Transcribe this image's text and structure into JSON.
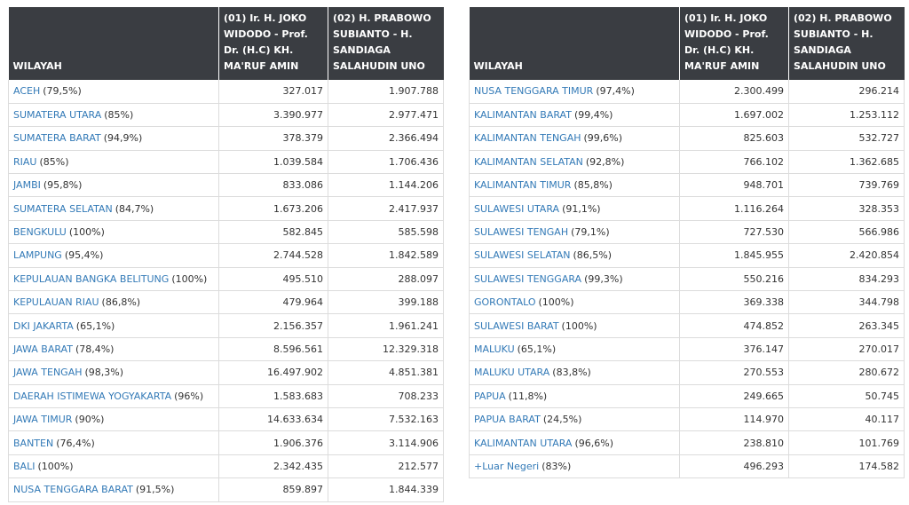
{
  "headers": {
    "region": "WILAYAH",
    "candidate1": "(01) Ir. H. JOKO WIDODO - Prof. Dr. (H.C) KH. MA'RUF AMIN",
    "candidate2": "(02) H. PRABOWO SUBIANTO - H. SANDIAGA SALAHUDIN UNO"
  },
  "left_rows": [
    {
      "region": "ACEH",
      "pct": "(79,5%)",
      "c1": "327.017",
      "c2": "1.907.788"
    },
    {
      "region": "SUMATERA UTARA",
      "pct": "(85%)",
      "c1": "3.390.977",
      "c2": "2.977.471"
    },
    {
      "region": "SUMATERA BARAT",
      "pct": "(94,9%)",
      "c1": "378.379",
      "c2": "2.366.494"
    },
    {
      "region": "RIAU",
      "pct": "(85%)",
      "c1": "1.039.584",
      "c2": "1.706.436"
    },
    {
      "region": "JAMBI",
      "pct": "(95,8%)",
      "c1": "833.086",
      "c2": "1.144.206"
    },
    {
      "region": "SUMATERA SELATAN",
      "pct": "(84,7%)",
      "c1": "1.673.206",
      "c2": "2.417.937"
    },
    {
      "region": "BENGKULU",
      "pct": "(100%)",
      "c1": "582.845",
      "c2": "585.598"
    },
    {
      "region": "LAMPUNG",
      "pct": "(95,4%)",
      "c1": "2.744.528",
      "c2": "1.842.589"
    },
    {
      "region": "KEPULAUAN BANGKA BELITUNG",
      "pct": "(100%)",
      "c1": "495.510",
      "c2": "288.097"
    },
    {
      "region": "KEPULAUAN RIAU",
      "pct": "(86,8%)",
      "c1": "479.964",
      "c2": "399.188"
    },
    {
      "region": "DKI JAKARTA",
      "pct": "(65,1%)",
      "c1": "2.156.357",
      "c2": "1.961.241"
    },
    {
      "region": "JAWA BARAT",
      "pct": "(78,4%)",
      "c1": "8.596.561",
      "c2": "12.329.318"
    },
    {
      "region": "JAWA TENGAH",
      "pct": "(98,3%)",
      "c1": "16.497.902",
      "c2": "4.851.381"
    },
    {
      "region": "DAERAH ISTIMEWA YOGYAKARTA",
      "pct": "(96%)",
      "c1": "1.583.683",
      "c2": "708.233"
    },
    {
      "region": "JAWA TIMUR",
      "pct": "(90%)",
      "c1": "14.633.634",
      "c2": "7.532.163"
    },
    {
      "region": "BANTEN",
      "pct": "(76,4%)",
      "c1": "1.906.376",
      "c2": "3.114.906"
    },
    {
      "region": "BALI",
      "pct": "(100%)",
      "c1": "2.342.435",
      "c2": "212.577"
    },
    {
      "region": "NUSA TENGGARA BARAT",
      "pct": "(91,5%)",
      "c1": "859.897",
      "c2": "1.844.339"
    }
  ],
  "right_rows": [
    {
      "region": "NUSA TENGGARA TIMUR",
      "pct": "(97,4%)",
      "c1": "2.300.499",
      "c2": "296.214"
    },
    {
      "region": "KALIMANTAN BARAT",
      "pct": "(99,4%)",
      "c1": "1.697.002",
      "c2": "1.253.112"
    },
    {
      "region": "KALIMANTAN TENGAH",
      "pct": "(99,6%)",
      "c1": "825.603",
      "c2": "532.727"
    },
    {
      "region": "KALIMANTAN SELATAN",
      "pct": "(92,8%)",
      "c1": "766.102",
      "c2": "1.362.685"
    },
    {
      "region": "KALIMANTAN TIMUR",
      "pct": "(85,8%)",
      "c1": "948.701",
      "c2": "739.769"
    },
    {
      "region": "SULAWESI UTARA",
      "pct": "(91,1%)",
      "c1": "1.116.264",
      "c2": "328.353"
    },
    {
      "region": "SULAWESI TENGAH",
      "pct": "(79,1%)",
      "c1": "727.530",
      "c2": "566.986"
    },
    {
      "region": "SULAWESI SELATAN",
      "pct": "(86,5%)",
      "c1": "1.845.955",
      "c2": "2.420.854"
    },
    {
      "region": "SULAWESI TENGGARA",
      "pct": "(99,3%)",
      "c1": "550.216",
      "c2": "834.293"
    },
    {
      "region": "GORONTALO",
      "pct": "(100%)",
      "c1": "369.338",
      "c2": "344.798"
    },
    {
      "region": "SULAWESI BARAT",
      "pct": "(100%)",
      "c1": "474.852",
      "c2": "263.345"
    },
    {
      "region": "MALUKU",
      "pct": "(65,1%)",
      "c1": "376.147",
      "c2": "270.017"
    },
    {
      "region": "MALUKU UTARA",
      "pct": "(83,8%)",
      "c1": "270.553",
      "c2": "280.672"
    },
    {
      "region": "PAPUA",
      "pct": "(11,8%)",
      "c1": "249.665",
      "c2": "50.745"
    },
    {
      "region": "PAPUA BARAT",
      "pct": "(24,5%)",
      "c1": "114.970",
      "c2": "40.117"
    },
    {
      "region": "KALIMANTAN UTARA",
      "pct": "(96,6%)",
      "c1": "238.810",
      "c2": "101.769"
    },
    {
      "region": "+Luar Negeri",
      "pct": "(83%)",
      "c1": "496.293",
      "c2": "174.582"
    }
  ]
}
